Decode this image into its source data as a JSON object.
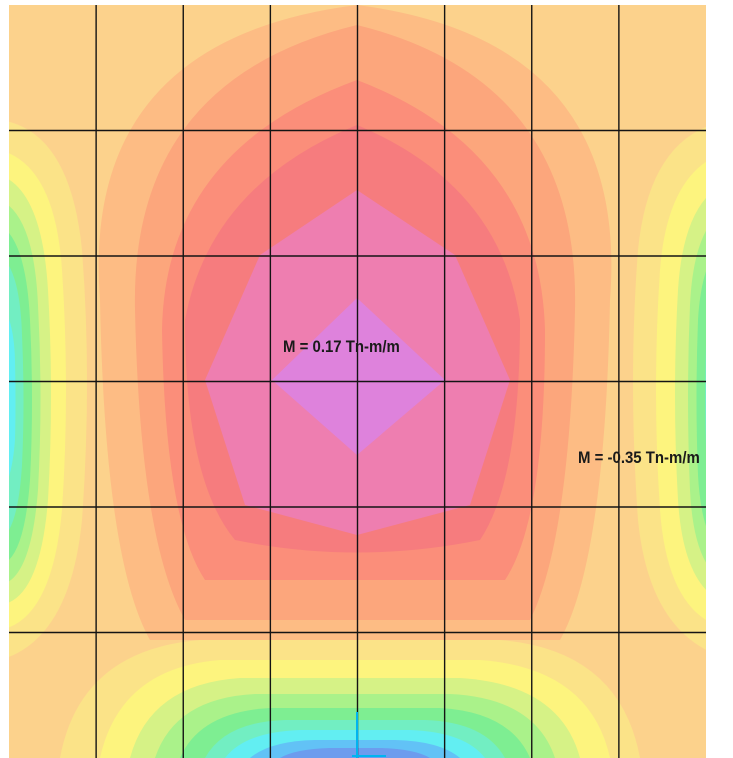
{
  "plot": {
    "label_center": "M = 0.17 Tn-m/m",
    "label_edge": "M = -0.35 Tn-m/m"
  },
  "mesh": {
    "columns": 8,
    "rows": 6
  },
  "colors": {
    "background": "#fcd28c",
    "orange_light": "#fdbc84",
    "orange": "#fca67c",
    "salmon": "#fb8e7a",
    "red": "#f67c7e",
    "pink": "#ee7eb0",
    "magenta": "#de82dc",
    "yellow_light": "#fbe388",
    "yellow": "#fdf47e",
    "lime": "#d6f286",
    "green_light": "#aaf28a",
    "green": "#7eee92",
    "teal": "#72eec2",
    "cyan": "#62eef2",
    "sky": "#62c2f6",
    "blue": "#6c9cee",
    "grid_line": "#141414"
  }
}
